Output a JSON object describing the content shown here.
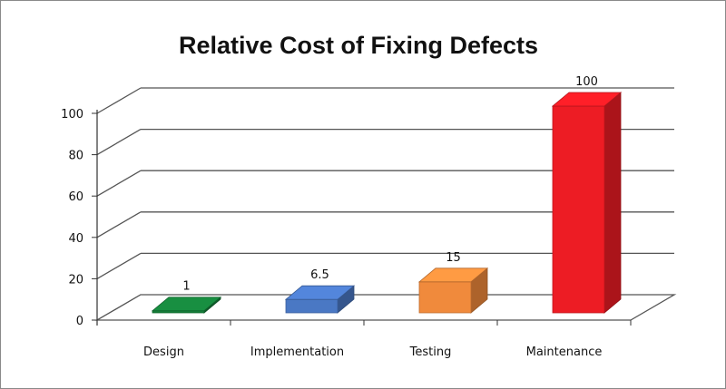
{
  "chart_data": {
    "type": "bar",
    "title": "Relative Cost of Fixing Defects",
    "xlabel": "",
    "ylabel": "",
    "categories": [
      "Design",
      "Implementation",
      "Testing",
      "Maintenance"
    ],
    "values": [
      1,
      6.5,
      15,
      100
    ],
    "value_labels": [
      "1",
      "6.5",
      "15",
      "100"
    ],
    "yticks": [
      "0",
      "20",
      "40",
      "60",
      "80",
      "100"
    ],
    "ylim": [
      0,
      100
    ],
    "grid": true,
    "legend": "none",
    "colors": [
      "#15803a",
      "#4a78c4",
      "#f08a3c",
      "#ed1c24"
    ]
  }
}
